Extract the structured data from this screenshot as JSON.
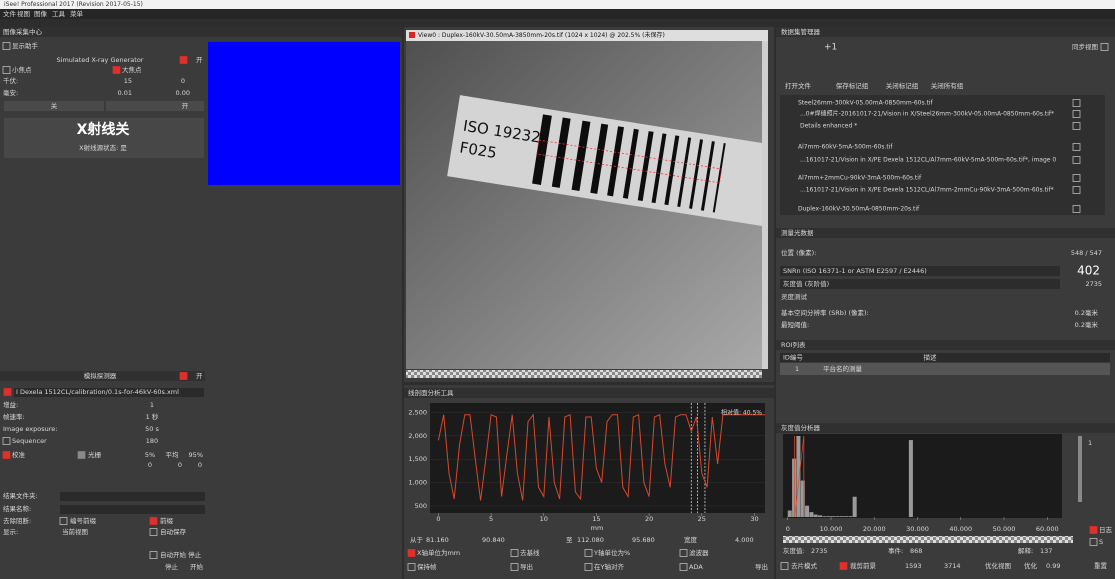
{
  "window": {
    "title": "iSee! Professional 2017 (Revision 2017-05-15)"
  },
  "menu": [
    "文件",
    "视图",
    "图像",
    "工具",
    "菜单"
  ],
  "acquisition": {
    "header": "图像采集中心",
    "show_help": "显示助手",
    "generator": {
      "title": "Simulated X-ray Generator",
      "on": "开",
      "small_focus": "小焦点",
      "large_focus": "大焦点",
      "kv_label": "千伏:",
      "kv": "15",
      "kv_actual": "0",
      "ma_label": "毫安:",
      "ma": "0.01",
      "ma_actual": "0.00",
      "btn_off": "关",
      "btn_on": "开",
      "status": "X射线关",
      "status_sub": "X射线源状态: 是"
    },
    "detector": {
      "title": "模拟探测器",
      "on": "开",
      "file": "I Dexela 1512CL/calibration/0.1s-for-46kV-60s.xml",
      "gain_label": "增益:",
      "gain": "1",
      "rate_label": "帧速率:",
      "rate": "1 秒",
      "exposure_label": "Image exposure:",
      "exposure": "50 s",
      "sequencer_label": "Sequencer",
      "sequencer": "180",
      "calib": "校准",
      "raster": "光栅",
      "pct_low": "5%",
      "avg": "平均",
      "pct_high": "95%",
      "zeros": [
        "0",
        "0",
        "0"
      ]
    },
    "results": {
      "folder": "结果文件夹:",
      "name": "结果名称:",
      "dedup": "去除阻断:",
      "prefix_label": "编号前缀",
      "prefix": "前缀",
      "show_label": "显示:",
      "show_value": "当前视图",
      "autosave": "自动保存",
      "auto_start": "自动开始 停止",
      "stop": "停止",
      "start": "开始"
    }
  },
  "view": {
    "title": "View0 : Duplex-160kV-30.50mA-3850mm-20s.tif (1024 x 1024) @ 202.5% (未保存)",
    "label_line1": "ISO 19232",
    "label_line2": "F025"
  },
  "profile": {
    "type": "line",
    "header": "线剖面分析工具",
    "annotation": "相对值: 40.5%",
    "xlabel": "mm",
    "color": "#d9482b",
    "x": [
      0,
      0.5,
      1,
      1.5,
      2,
      2.5,
      3,
      3.5,
      4,
      4.5,
      5,
      5.5,
      6,
      6.5,
      7,
      7.5,
      8,
      8.5,
      9,
      9.5,
      10,
      10.5,
      11,
      11.5,
      12,
      12.5,
      13,
      13.5,
      14,
      14.5,
      15,
      15.5,
      16,
      16.5,
      17,
      17.5,
      18,
      18.5,
      19,
      19.5,
      20,
      20.5,
      21,
      21.5,
      22,
      22.5,
      23,
      23.5,
      24,
      24.5,
      25,
      25.5,
      26,
      26.5,
      27,
      27.5,
      28,
      28.5,
      29,
      29.5,
      30,
      30.5,
      31
    ],
    "values": [
      1900,
      2450,
      1200,
      650,
      1800,
      2450,
      2450,
      1500,
      620,
      1500,
      2450,
      2400,
      700,
      1600,
      2450,
      1200,
      620,
      2300,
      2450,
      900,
      700,
      2400,
      1000,
      650,
      2400,
      2450,
      800,
      650,
      2400,
      2400,
      1300,
      1000,
      2300,
      2450,
      2450,
      900,
      700,
      2400,
      2450,
      1000,
      700,
      2400,
      2450,
      1400,
      900,
      2400,
      2450,
      2450,
      2100,
      2400,
      1200,
      900,
      2400,
      1400,
      2450,
      2450,
      2450,
      2450,
      2450,
      2450,
      2450,
      2450,
      2450
    ],
    "xlim": [
      -0.8,
      31
    ],
    "ylim": [
      350,
      2700
    ],
    "xticks": [
      0,
      5,
      10,
      15,
      20,
      25,
      30
    ],
    "yticks": [
      500,
      {
        "value": 1000,
        "label": "1,000"
      },
      {
        "value": 1500,
        "label": "1,500"
      },
      {
        "value": 2000,
        "label": "2,000"
      },
      {
        "value": 2500,
        "label": "2,500"
      }
    ],
    "controls": {
      "from": "从于",
      "x1": "81.160",
      "y1": "90.840",
      "to": "至",
      "x2": "112.080",
      "y2": "95.680",
      "width_label": "宽度",
      "width": "4.000",
      "unit_mm": "X轴单位为mm",
      "baseline": "去基线",
      "unit_pct": "Y轴单位为%",
      "filter": "滤波器",
      "hold": "保持帧",
      "export1": "导出",
      "align": "在Y轴对齐",
      "ada": "ADA",
      "export2": "导出"
    }
  },
  "datasets": {
    "header": "数据集管理器",
    "sync": "同步视图",
    "plus": "+1",
    "open": "打开文件",
    "save": "保存标记组",
    "close": "关闭标记组",
    "close_all": "关闭所有组",
    "items": [
      "Steel26mm-300kV-05.00mA-0850mm-60s.tif",
      "...0#焊缝照片-20161017-21/Vision in X/Steel26mm-300kV-05.00mA-0850mm-60s.tif*",
      "Details enhanced *",
      "Al7mm-60kV-5mA-500m-60s.tif",
      "...161017-21/Vision in X/PE Dexela 1512CL/Al7mm-60kV-5mA-500m-60s.tif*, image 0",
      "Al7mm+2mmCu-90kV-3mA-500m-60s.tif",
      "...161017-21/Vision in X/PE Dexela 1512CL/Al7mm-2mmCu-90kV-3mA-500m-60s.tif*",
      "Duplex-160kV-30.50mA-0850mm-20s.tif"
    ]
  },
  "measurement": {
    "header": "测量光数据",
    "pos_label": "位置 (像素):",
    "pos": "548 / 547",
    "snr_label": "SNRn (ISO 16371-1 or ASTM E2597 / E2446)",
    "snr": "402",
    "gray_label": "灰度值 (灰阶值)",
    "gray": "2735",
    "sharp": "灵度测试",
    "srb_label": "基本空间分辨率 (SRb) (像素):",
    "srb": "0.2毫米",
    "min_label": "最短阈值:",
    "min": "0.2毫米"
  },
  "roi": {
    "header": "ROI列表",
    "col_id": "ID编号",
    "col_desc": "描述",
    "row_id": "1",
    "row_desc": "平台名的测量"
  },
  "histogram": {
    "type": "histogram",
    "header": "灰度值分析器",
    "color": "#9a9a9a",
    "bins": [
      0,
      1000,
      2000,
      3000,
      4000,
      5000,
      6000,
      7000,
      8000,
      9000,
      10000,
      11000,
      12000,
      13000,
      14000,
      15000,
      16000,
      17000,
      18000,
      19000,
      20000,
      21000,
      22000,
      23000,
      24000,
      25000,
      26000,
      27000,
      28000,
      29000,
      30000,
      31000,
      32000,
      33000,
      34000,
      35000,
      36000,
      37000,
      38000,
      39000,
      40000
    ],
    "counts": [
      8,
      72,
      100,
      45,
      14,
      6,
      3,
      2,
      1,
      1,
      1,
      1,
      1,
      1,
      1,
      25,
      0,
      0,
      0,
      0,
      0,
      0,
      0,
      0,
      0,
      0,
      0,
      0,
      95,
      0,
      0,
      0,
      0,
      0,
      0,
      0,
      0,
      0,
      0,
      0
    ],
    "xlim": [
      -1100,
      63400
    ],
    "ylim": [
      0,
      100
    ],
    "xticks": [
      0,
      {
        "value": 10000,
        "label": "10.000"
      },
      {
        "value": 20000,
        "label": "20.000"
      },
      {
        "value": 30000,
        "label": "30.000"
      },
      {
        "value": 40000,
        "label": "40.000"
      },
      {
        "value": 50000,
        "label": "50.000"
      },
      {
        "value": 60000,
        "label": "60.000"
      }
    ],
    "zoom": "1",
    "log": "日志",
    "s": "S",
    "gray_label": "灰度值:",
    "gray": "2735",
    "events_label": "事件:",
    "events": "868",
    "explain_label": "解释:",
    "explain": "137",
    "mode": "去片模式",
    "crop": "裁剪前景",
    "window": [
      1593,
      3714
    ],
    "optimize_view": "优化视图",
    "optimize": "优化",
    "gamma": "0.99",
    "reset": "重置"
  }
}
